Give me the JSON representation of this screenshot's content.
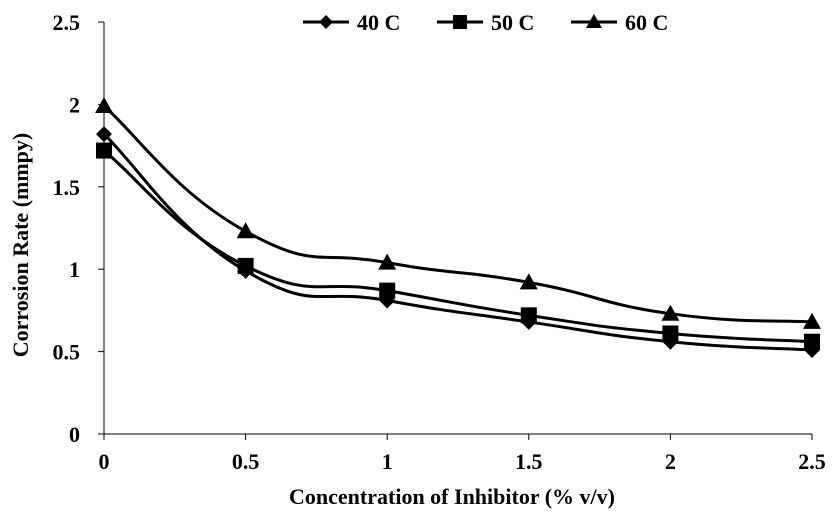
{
  "chart_data": {
    "type": "line",
    "title": "",
    "xlabel": "Concentration of Inhibitor (% v/v)",
    "ylabel": "Corrosion Rate (mmpy)",
    "x": [
      0,
      0.5,
      1,
      1.5,
      2,
      2.5
    ],
    "x_ticks": [
      "0",
      "0.5",
      "1",
      "1.5",
      "2",
      "2.5"
    ],
    "y_ticks": [
      "0",
      "0.5",
      "1",
      "1.5",
      "2",
      "2.5"
    ],
    "xlim": [
      0,
      2.5
    ],
    "ylim": [
      0,
      2.5
    ],
    "grid": false,
    "smooth": true,
    "legend_position": "top-right",
    "series": [
      {
        "name": "40 C",
        "marker": "diamond",
        "color": "#000000",
        "values": [
          1.82,
          0.99,
          0.81,
          0.68,
          0.56,
          0.51
        ]
      },
      {
        "name": "50 C",
        "marker": "square",
        "color": "#000000",
        "values": [
          1.72,
          1.02,
          0.87,
          0.72,
          0.61,
          0.56
        ]
      },
      {
        "name": "60 C",
        "marker": "triangle",
        "color": "#000000",
        "values": [
          1.99,
          1.23,
          1.04,
          0.92,
          0.73,
          0.68
        ]
      }
    ]
  }
}
